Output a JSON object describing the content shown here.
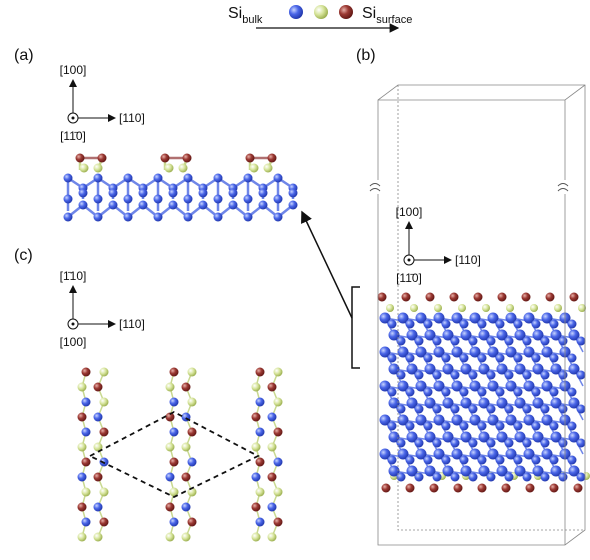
{
  "legend": {
    "bulk": {
      "text": "Si",
      "sub": "bulk"
    },
    "surface": {
      "text": "Si",
      "sub": "surface"
    }
  },
  "panels": [
    {
      "label": "(a)",
      "axes": {
        "up": "[100]",
        "right": "[110]",
        "out": "[11̄0]"
      }
    },
    {
      "label": "(b)",
      "axes": {
        "up": "[100]",
        "right": "[110]",
        "out": "[11̄0]"
      }
    },
    {
      "label": "(c)",
      "axes": {
        "up": "[1̄10]",
        "right": "[110]",
        "out": "[100]"
      }
    }
  ]
}
